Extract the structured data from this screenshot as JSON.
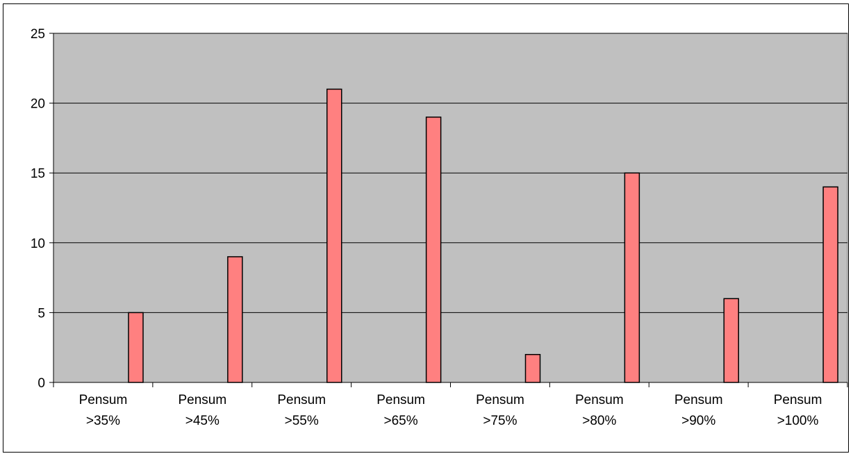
{
  "chart_data": {
    "type": "bar",
    "title": "",
    "xlabel": "",
    "ylabel": "",
    "categories": [
      [
        "Pensum",
        ">35%"
      ],
      [
        "Pensum",
        ">45%"
      ],
      [
        "Pensum",
        ">55%"
      ],
      [
        "Pensum",
        ">65%"
      ],
      [
        "Pensum",
        ">75%"
      ],
      [
        "Pensum",
        ">80%"
      ],
      [
        "Pensum",
        ">90%"
      ],
      [
        "Pensum",
        ">100%"
      ]
    ],
    "values": [
      5,
      9,
      21,
      19,
      2,
      15,
      6,
      14
    ],
    "ylim": [
      0,
      25
    ],
    "yticks": [
      0,
      5,
      10,
      15,
      20,
      25
    ],
    "grid": true,
    "legend": "none",
    "colors": {
      "plot_background": "#c0c0c0",
      "bar_fill": "#ff8080",
      "bar_stroke": "#000000",
      "gridline": "#000000"
    }
  }
}
